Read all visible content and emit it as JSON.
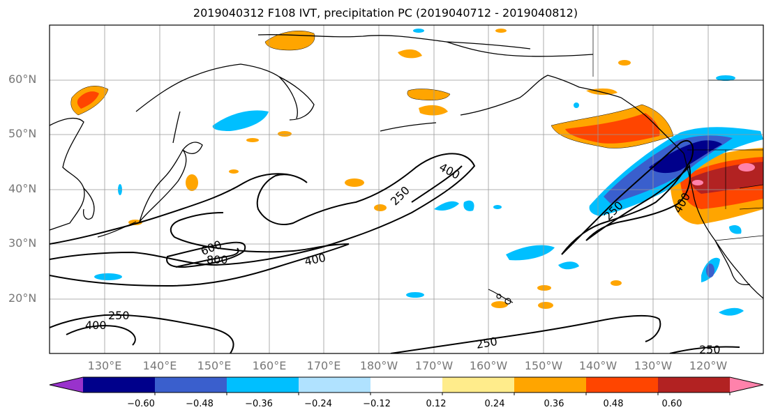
{
  "title": "2019040312 F108 IVT, precipitation PC (2019040712 - 2019040812)",
  "lat_labels": [
    "60°N",
    "50°N",
    "40°N",
    "30°N",
    "20°N"
  ],
  "lon_labels": [
    "130°E",
    "140°E",
    "150°E",
    "160°E",
    "170°E",
    "180°W",
    "170°W",
    "160°W",
    "150°W",
    "140°W",
    "130°W",
    "120°W"
  ],
  "contour_labels": [
    "400",
    "250",
    "600",
    "800",
    "400",
    "400",
    "250",
    "250",
    "250",
    "250",
    "400"
  ],
  "colorbar": {
    "ticks": [
      "−0.60",
      "−0.48",
      "−0.36",
      "−0.24",
      "−0.12",
      "0.12",
      "0.24",
      "0.36",
      "0.48",
      "0.60"
    ],
    "colors": [
      "#9932cc",
      "#00008b",
      "#3a5fcd",
      "#00bfff",
      "#b0e2ff",
      "#ffffff",
      "#ffec8b",
      "#ffa500",
      "#ff4500",
      "#b22222",
      "#ff82ab"
    ]
  }
}
